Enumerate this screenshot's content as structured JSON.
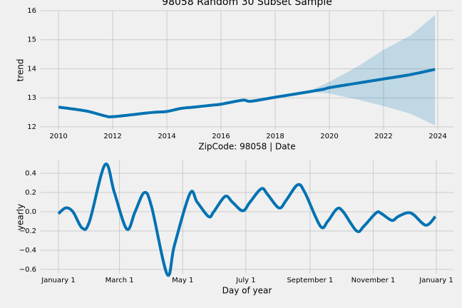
{
  "chart_data": [
    {
      "type": "line",
      "title": "98058 Random 30 Subset Sample",
      "xlabel": "ZipCode: 98058 | Date",
      "ylabel": "trend",
      "x": [
        2010,
        2011,
        2011.7,
        2012,
        2013,
        2013.5,
        2014,
        2014.5,
        2015,
        2015.7,
        2016,
        2016.8,
        2017.1,
        2018,
        2019,
        2019.8,
        2020,
        2021,
        2022,
        2023,
        2023.9
      ],
      "series": [
        {
          "name": "trend",
          "color": "#0072b2",
          "values": [
            12.68,
            12.55,
            12.38,
            12.35,
            12.45,
            12.5,
            12.53,
            12.63,
            12.68,
            12.75,
            12.78,
            12.92,
            12.88,
            13.02,
            13.17,
            13.3,
            13.35,
            13.5,
            13.65,
            13.8,
            13.98
          ]
        }
      ],
      "band": {
        "x": [
          2017,
          2018,
          2019.3,
          2020,
          2021,
          2022,
          2023,
          2023.9
        ],
        "upper": [
          12.9,
          13.04,
          13.25,
          13.55,
          14.05,
          14.65,
          15.15,
          15.85
        ],
        "lower": [
          12.86,
          13.0,
          13.2,
          13.15,
          12.95,
          12.72,
          12.45,
          12.05
        ]
      },
      "xlim": [
        2009.34,
        2024.58
      ],
      "ylim": [
        11.9,
        16.0
      ],
      "xticks": [
        2010,
        2012,
        2014,
        2016,
        2018,
        2020,
        2022,
        2024
      ],
      "yticks": [
        12,
        13,
        14,
        15,
        16
      ],
      "grid": true
    },
    {
      "type": "line",
      "xlabel": "Day of year",
      "ylabel": "yearly",
      "x": [
        0,
        7,
        14,
        23,
        30,
        45,
        54,
        66,
        74,
        83,
        90,
        105,
        112,
        127,
        134,
        145,
        150,
        161,
        168,
        178,
        185,
        196,
        202,
        213,
        220,
        231,
        238,
        253,
        260,
        269,
        275,
        288,
        295,
        307,
        312,
        322,
        328,
        337,
        343,
        355,
        364
      ],
      "series": [
        {
          "name": "yearly",
          "color": "#0072b2",
          "values": [
            -0.02,
            0.04,
            0.0,
            -0.17,
            -0.1,
            0.49,
            0.2,
            -0.18,
            0.0,
            0.2,
            0.05,
            -0.65,
            -0.35,
            0.19,
            0.1,
            -0.05,
            0.0,
            0.16,
            0.1,
            0.01,
            0.1,
            0.24,
            0.18,
            0.04,
            0.12,
            0.28,
            0.2,
            -0.15,
            -0.1,
            0.03,
            0.0,
            -0.2,
            -0.15,
            -0.01,
            -0.02,
            -0.09,
            -0.05,
            -0.01,
            -0.03,
            -0.14,
            -0.05
          ]
        }
      ],
      "xlim": [
        -17.2,
        381.5
      ],
      "ylim": [
        -0.645,
        0.534
      ],
      "xticks": [
        {
          "value": 0,
          "label": "January 1"
        },
        {
          "value": 59,
          "label": "March 1"
        },
        {
          "value": 120,
          "label": "May 1"
        },
        {
          "value": 181,
          "label": "July 1"
        },
        {
          "value": 243,
          "label": "September 1"
        },
        {
          "value": 304,
          "label": "November 1"
        },
        {
          "value": 365,
          "label": "January 1"
        }
      ],
      "yticks": [
        {
          "value": -0.6,
          "label": "−0.6"
        },
        {
          "value": -0.4,
          "label": "−0.4"
        },
        {
          "value": -0.2,
          "label": "−0.2"
        },
        {
          "value": 0,
          "label": "0.0"
        },
        0.2,
        0.4
      ],
      "grid": true
    }
  ]
}
